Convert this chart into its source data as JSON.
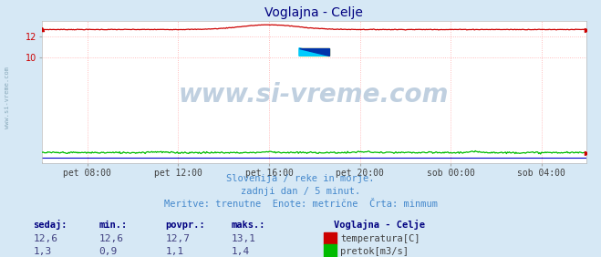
{
  "title": "Voglajna - Celje",
  "title_color": "#000080",
  "bg_color": "#d6e8f5",
  "plot_bg_color": "#ffffff",
  "grid_color": "#ffaaaa",
  "grid_linestyle": ":",
  "watermark_text": "www.si-vreme.com",
  "watermark_color": "#c0d0e0",
  "sub_text1": "Slovenija / reke in morje.",
  "sub_text2": "zadnji dan / 5 minut.",
  "sub_text3": "Meritve: trenutne  Enote: metrične  Črta: minmum",
  "sub_text_color": "#4488cc",
  "x_tick_labels": [
    "pet 08:00",
    "pet 12:00",
    "pet 16:00",
    "pet 20:00",
    "sob 00:00",
    "sob 04:00"
  ],
  "x_tick_positions": [
    48,
    144,
    240,
    336,
    432,
    528
  ],
  "y_ticks": [
    10,
    12
  ],
  "ylim": [
    0.0,
    13.5
  ],
  "xlim": [
    0,
    575
  ],
  "temp_color": "#cc0000",
  "flow_color": "#00bb00",
  "blue_line_color": "#0000cc",
  "dot_color": "#cc0000",
  "legend_title": "Voglajna - Celje",
  "legend_title_color": "#000080",
  "legend_label1": "temperatura[C]",
  "legend_label2": "pretok[m3/s]",
  "table_header": [
    "sedaj:",
    "min.:",
    "povpr.:",
    "maks.:"
  ],
  "table_header_color": "#000080",
  "table_values_temp": [
    "12,6",
    "12,6",
    "12,7",
    "13,1"
  ],
  "table_values_flow": [
    "1,3",
    "0,9",
    "1,1",
    "1,4"
  ],
  "table_value_color": "#404080",
  "left_text": "www.si-vreme.com",
  "left_text_color": "#8aaabb",
  "n_points": 576
}
